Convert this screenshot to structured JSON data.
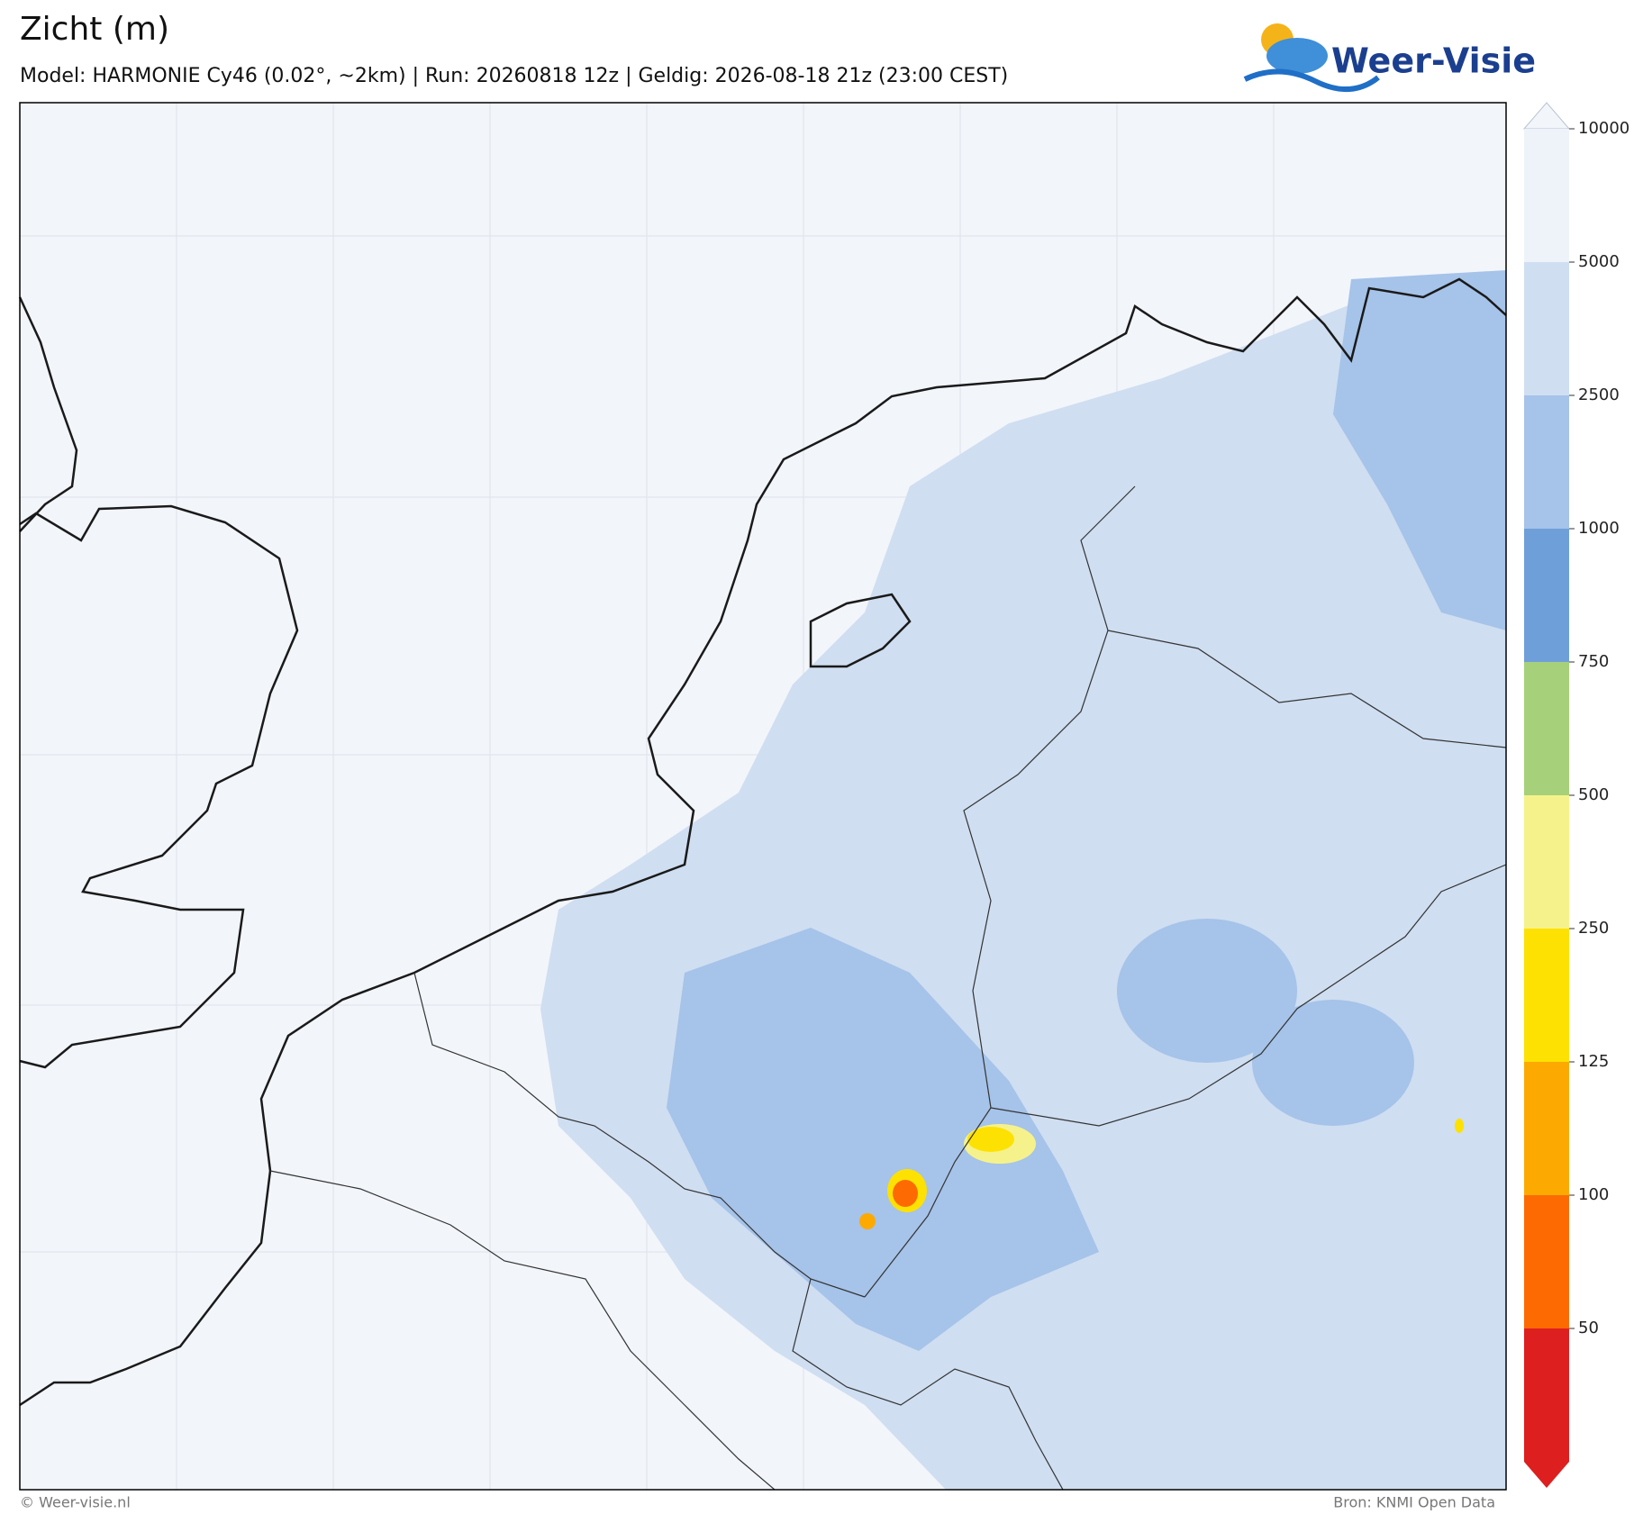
{
  "header": {
    "title": "Zicht (m)",
    "subtitle": "Model: HARMONIE Cy46 (0.02°, ~2km)  |  Run: 20260818 12z  |  Geldig: 2026-08-18 21z (23:00 CEST)"
  },
  "logo": "Weer-Visie",
  "colorbar": {
    "levels": [
      10000,
      5000,
      2500,
      1000,
      750,
      500,
      250,
      125,
      100,
      50
    ],
    "colors": [
      "#f2f6fb",
      "#eef3f9",
      "#cfdef1",
      "#a6c3e9",
      "#6f9fd9",
      "#a7d07a",
      "#f5f28c",
      "#fde102",
      "#fcaa02",
      "#fd6a02",
      "#dd1f1f"
    ]
  },
  "footer": {
    "left": "© Weer-visie.nl",
    "right": "Bron: KNMI Open Data"
  }
}
